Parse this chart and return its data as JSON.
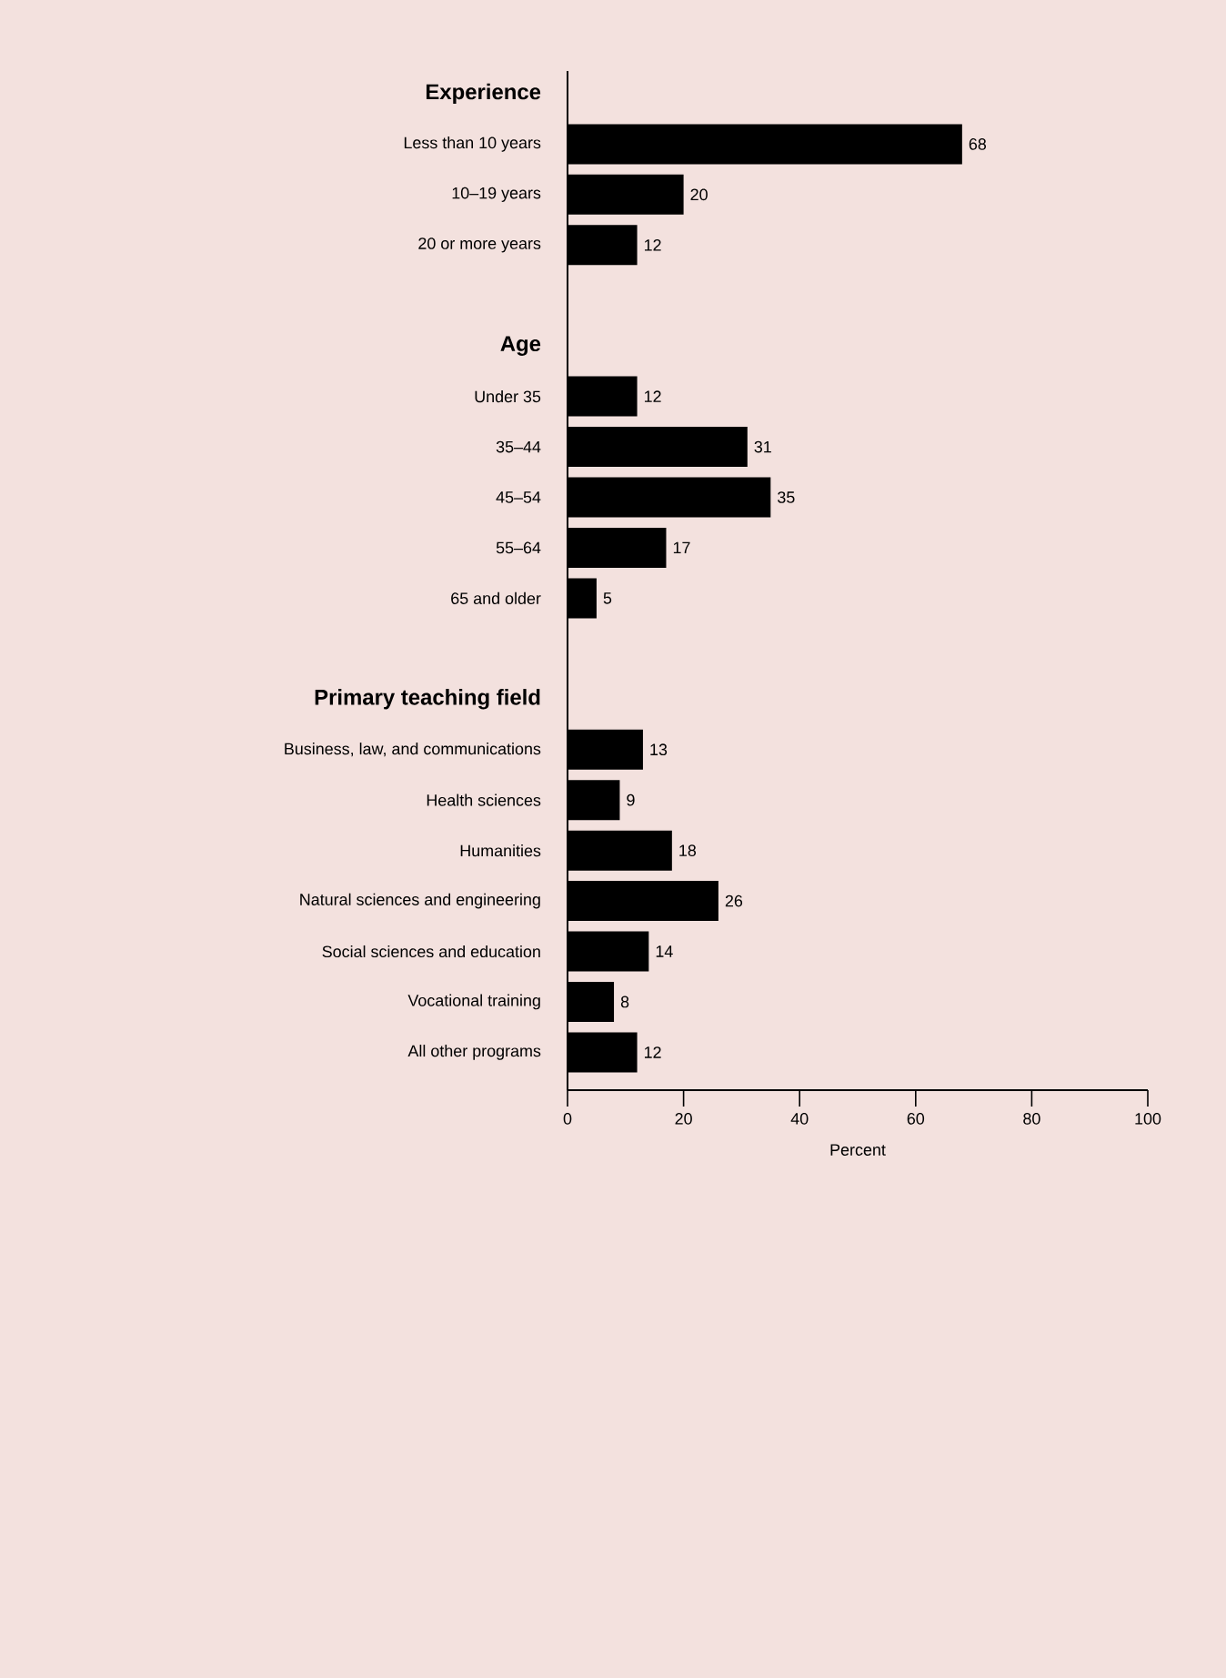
{
  "chart_data": {
    "type": "bar",
    "orientation": "horizontal",
    "xlabel": "Percent",
    "categories": [
      "Experience",
      "Less than 10 years",
      "10–19 years",
      "20 or more years",
      null,
      "Age",
      "Under 35",
      "35–44",
      "45–54",
      "55–64",
      "65 and older",
      null,
      "Primary teaching field",
      "Business, law, and communications",
      "Health sciences",
      "Humanities",
      "Natural sciences and engineering",
      "Social sciences and education",
      "Vocational training",
      "All other programs"
    ],
    "values": [
      null,
      68,
      20,
      12,
      null,
      null,
      12,
      31,
      35,
      17,
      5,
      null,
      null,
      13,
      9,
      18,
      26,
      14,
      8,
      12
    ],
    "color": "#000000",
    "data_labels": true,
    "xlim": [
      0,
      100
    ],
    "xticks": [
      0,
      20,
      40,
      60,
      80,
      100
    ]
  }
}
